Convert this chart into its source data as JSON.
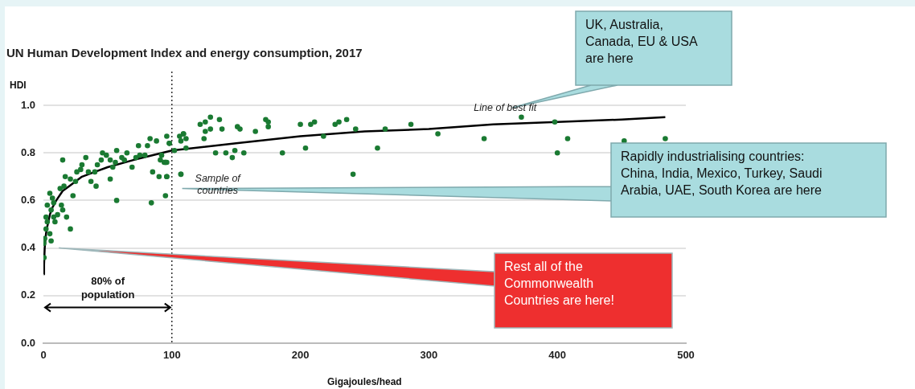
{
  "chart_data": {
    "type": "scatter",
    "title": "UN Human Development Index and energy consumption, 2017",
    "xlabel": "Gigajoules/head",
    "ylabel": "HDI",
    "xlim": [
      0,
      500
    ],
    "xticks": [
      0,
      100,
      200,
      300,
      400,
      500
    ],
    "ylim": [
      0,
      1
    ],
    "yticks": [
      {
        "value": 0,
        "label": "0.0"
      },
      {
        "value": 0.2,
        "label": "0.2"
      },
      {
        "value": 0.4,
        "label": "0.4"
      },
      {
        "value": 0.6,
        "label": "0.6"
      },
      {
        "value": 0.8,
        "label": "0.8"
      },
      {
        "value": 1,
        "label": "1.0"
      }
    ],
    "grid": "y",
    "legend": false,
    "marker": "circle",
    "ref_lines": [
      {
        "axis": "x",
        "value": 100,
        "line_style": "dotted",
        "color": "#000000"
      }
    ],
    "annotations": [
      "UK, Australia,\nCanada, EU & USA\nare here",
      "Rapidly industrialising countries:\nChina, India, Mexico, Turkey, Saudi\nArabia, UAE, South Korea are here",
      "Rest all of the\nCommonwealth\nCountries are here!",
      "80% of\npopulation"
    ],
    "series": [
      {
        "name": "Sample of\ncountries",
        "color": "#1a7a32",
        "x": [
          15,
          5,
          0.5,
          0.3,
          21,
          57,
          84,
          95,
          107,
          57,
          96,
          109,
          7,
          3,
          8,
          6,
          2,
          3,
          8,
          11,
          15,
          14,
          18,
          2,
          5,
          6,
          1,
          9,
          16,
          21,
          23,
          17,
          26,
          29,
          30,
          33,
          37,
          41,
          35,
          42,
          46,
          45,
          52,
          54,
          52,
          61,
          65,
          69,
          74,
          75,
          79,
          83,
          85,
          81,
          88,
          91,
          90,
          96,
          92,
          94,
          98,
          40,
          49,
          56,
          63,
          72,
          25,
          13,
          98,
          106,
          109,
          107,
          111,
          111,
          102,
          107,
          96,
          95,
          95,
          96,
          122,
          126,
          130,
          137,
          126,
          130,
          139,
          125,
          134,
          142,
          147,
          149,
          156,
          151,
          153,
          165,
          173,
          175,
          175,
          186,
          200,
          208,
          211,
          204,
          218,
          227,
          230,
          236,
          243,
          241,
          260,
          266,
          286,
          307,
          343,
          372,
          398,
          400,
          408,
          452,
          484
        ],
        "values": [
          0.77,
          0.63,
          0.36,
          0.42,
          0.48,
          0.6,
          0.59,
          0.62,
          0.71,
          0.81,
          0.87,
          0.88,
          0.61,
          0.58,
          0.59,
          0.56,
          0.53,
          0.51,
          0.53,
          0.54,
          0.56,
          0.58,
          0.53,
          0.48,
          0.46,
          0.43,
          0.44,
          0.51,
          0.66,
          0.69,
          0.62,
          0.7,
          0.72,
          0.73,
          0.75,
          0.78,
          0.68,
          0.66,
          0.72,
          0.75,
          0.8,
          0.77,
          0.69,
          0.74,
          0.77,
          0.78,
          0.8,
          0.74,
          0.83,
          0.79,
          0.79,
          0.86,
          0.72,
          0.83,
          0.85,
          0.77,
          0.7,
          0.7,
          0.79,
          0.76,
          0.84,
          0.72,
          0.79,
          0.76,
          0.77,
          0.78,
          0.68,
          0.65,
          0.84,
          0.87,
          0.88,
          0.85,
          0.86,
          0.82,
          0.81,
          0.71,
          0.7,
          0.76,
          0.76,
          0.76,
          0.92,
          0.93,
          0.95,
          0.94,
          0.89,
          0.9,
          0.9,
          0.86,
          0.8,
          0.8,
          0.78,
          0.81,
          0.8,
          0.91,
          0.9,
          0.89,
          0.94,
          0.93,
          0.91,
          0.8,
          0.92,
          0.92,
          0.93,
          0.82,
          0.87,
          0.92,
          0.93,
          0.94,
          0.9,
          0.71,
          0.82,
          0.9,
          0.92,
          0.88,
          0.86,
          0.95,
          0.93,
          0.8,
          0.86,
          0.85,
          0.86
        ]
      },
      {
        "type": "line",
        "name": "Line of best fit",
        "color": "#000000",
        "marker": "none",
        "x": [
          0.3,
          0.5,
          1,
          2,
          3,
          5,
          7,
          10,
          15,
          20,
          30,
          40,
          50,
          70,
          100,
          150,
          200,
          250,
          300,
          350,
          400,
          450,
          484
        ],
        "values": [
          0.29,
          0.33,
          0.4,
          0.46,
          0.49,
          0.54,
          0.57,
          0.6,
          0.64,
          0.66,
          0.7,
          0.72,
          0.74,
          0.77,
          0.81,
          0.84,
          0.87,
          0.89,
          0.9,
          0.92,
          0.93,
          0.94,
          0.95
        ]
      }
    ]
  }
}
